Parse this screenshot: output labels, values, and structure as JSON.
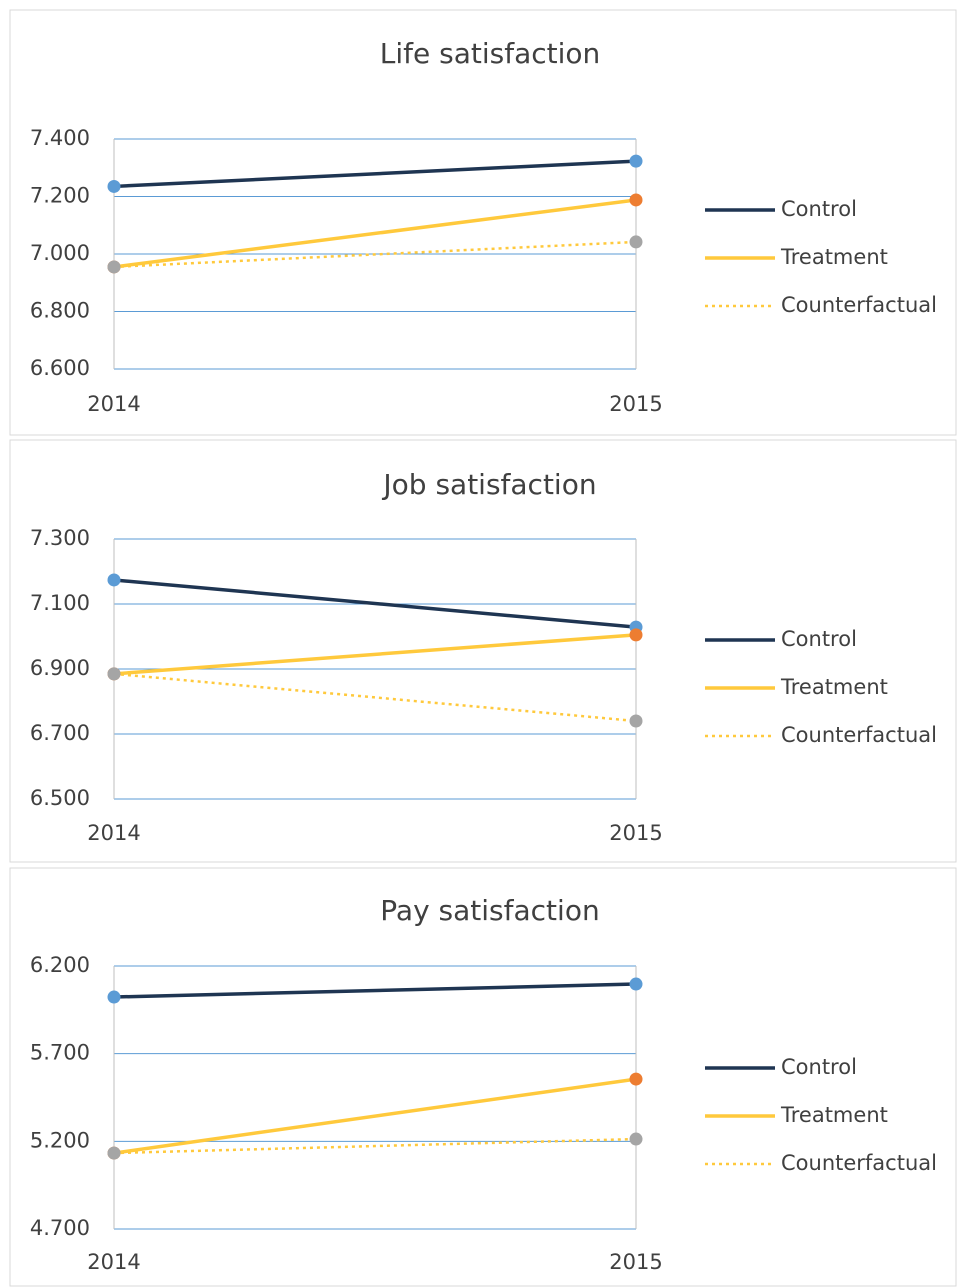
{
  "chart_data": [
    {
      "type": "line",
      "title": "Life satisfaction",
      "categories": [
        "2014",
        "2015"
      ],
      "ylim": [
        6.6,
        7.4
      ],
      "yticks": [
        {
          "value": 6.6,
          "label": "6.600"
        },
        {
          "value": 6.8,
          "label": "6.800"
        },
        {
          "value": 7.0,
          "label": "7.000"
        },
        {
          "value": 7.2,
          "label": "7.200"
        },
        {
          "value": 7.4,
          "label": "7.400"
        }
      ],
      "grid": true,
      "legend": "right",
      "series": [
        {
          "name": "Control",
          "color": "#1f3552",
          "marker_color": "#5b9bd5",
          "line_style": "solid",
          "values": [
            7.235,
            7.323
          ]
        },
        {
          "name": "Treatment",
          "color": "#ffc93c",
          "marker_color": "#ed7d31",
          "line_style": "solid",
          "values": [
            6.955,
            7.188
          ]
        },
        {
          "name": "Counterfactual",
          "color": "#ffc93c",
          "marker_color": "#a5a5a5",
          "line_style": "dotted",
          "values": [
            6.955,
            7.042
          ]
        }
      ]
    },
    {
      "type": "line",
      "title": "Job satisfaction",
      "categories": [
        "2014",
        "2015"
      ],
      "ylim": [
        6.5,
        7.3
      ],
      "yticks": [
        {
          "value": 6.5,
          "label": "6.500"
        },
        {
          "value": 6.7,
          "label": "6.700"
        },
        {
          "value": 6.9,
          "label": "6.900"
        },
        {
          "value": 7.1,
          "label": "7.100"
        },
        {
          "value": 7.3,
          "label": "7.300"
        }
      ],
      "grid": true,
      "legend": "right",
      "series": [
        {
          "name": "Control",
          "color": "#1f3552",
          "marker_color": "#5b9bd5",
          "line_style": "solid",
          "values": [
            7.174,
            7.029
          ]
        },
        {
          "name": "Treatment",
          "color": "#ffc93c",
          "marker_color": "#ed7d31",
          "line_style": "solid",
          "values": [
            6.885,
            7.005
          ]
        },
        {
          "name": "Counterfactual",
          "color": "#ffc93c",
          "marker_color": "#a5a5a5",
          "line_style": "dotted",
          "values": [
            6.885,
            6.74
          ]
        }
      ]
    },
    {
      "type": "line",
      "title": "Pay satisfaction",
      "categories": [
        "2014",
        "2015"
      ],
      "ylim": [
        4.7,
        6.2
      ],
      "yticks": [
        {
          "value": 4.7,
          "label": "4.700"
        },
        {
          "value": 5.2,
          "label": "5.200"
        },
        {
          "value": 5.7,
          "label": "5.700"
        },
        {
          "value": 6.2,
          "label": "6.200"
        }
      ],
      "grid": true,
      "legend": "right",
      "series": [
        {
          "name": "Control",
          "color": "#1f3552",
          "marker_color": "#5b9bd5",
          "line_style": "solid",
          "values": [
            6.023,
            6.097
          ]
        },
        {
          "name": "Treatment",
          "color": "#ffc93c",
          "marker_color": "#ed7d31",
          "line_style": "solid",
          "values": [
            5.133,
            5.555
          ]
        },
        {
          "name": "Counterfactual",
          "color": "#ffc93c",
          "marker_color": "#a5a5a5",
          "line_style": "dotted",
          "values": [
            5.133,
            5.213
          ]
        }
      ]
    }
  ]
}
